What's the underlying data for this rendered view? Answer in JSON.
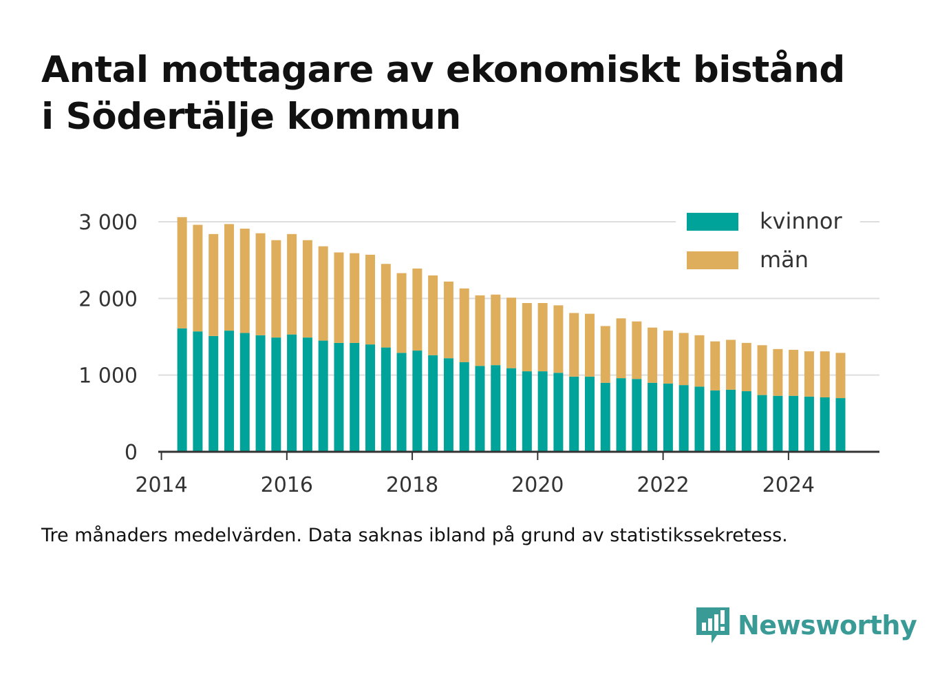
{
  "title_line1": "Antal mottagare av ekonomiskt bistånd",
  "title_line2": "i Södertälje kommun",
  "footnote": "Tre månaders medelvärden. Data saknas ibland på grund av statistikssekretess.",
  "brand": "Newsworthy",
  "brand_icon": "bar-chart-speech-bubble-icon",
  "colors": {
    "kvinnor": "#00a39a",
    "man": "#deae5c",
    "grid": "#dddddd",
    "axis": "#333333",
    "brand": "#3a9a96"
  },
  "chart_data": {
    "type": "bar",
    "stacked": true,
    "title": "Antal mottagare av ekonomiskt bistånd i Södertälje kommun",
    "xlim": [
      2013.95,
      2025.45
    ],
    "ylim": [
      0,
      3000
    ],
    "xticks": [
      2014,
      2016,
      2018,
      2020,
      2022,
      2024
    ],
    "xtick_labels": [
      "2014",
      "2016",
      "2018",
      "2020",
      "2022",
      "2024"
    ],
    "yticks": [
      0,
      1000,
      2000,
      3000
    ],
    "ytick_labels": [
      "0",
      "1 000",
      "2 000",
      "3 000"
    ],
    "grid": true,
    "legend": {
      "position": "top-right",
      "entries": [
        "kvinnor",
        "män"
      ]
    },
    "x": [
      2014.33,
      2014.58,
      2014.83,
      2015.08,
      2015.33,
      2015.58,
      2015.83,
      2016.08,
      2016.33,
      2016.58,
      2016.83,
      2017.08,
      2017.33,
      2017.58,
      2017.83,
      2018.08,
      2018.33,
      2018.58,
      2018.83,
      2019.08,
      2019.33,
      2019.58,
      2019.83,
      2020.08,
      2020.33,
      2020.58,
      2020.83,
      2021.08,
      2021.33,
      2021.58,
      2021.83,
      2022.08,
      2022.33,
      2022.58,
      2022.83,
      2023.08,
      2023.33,
      2023.58,
      2023.83,
      2024.08,
      2024.33,
      2024.58,
      2024.83
    ],
    "series": [
      {
        "name": "kvinnor",
        "values": [
          1610,
          1570,
          1510,
          1580,
          1550,
          1520,
          1490,
          1530,
          1490,
          1450,
          1420,
          1420,
          1400,
          1360,
          1290,
          1320,
          1260,
          1220,
          1170,
          1120,
          1130,
          1090,
          1050,
          1050,
          1030,
          980,
          980,
          900,
          960,
          950,
          900,
          890,
          870,
          850,
          800,
          810,
          790,
          740,
          730,
          730,
          720,
          710,
          700
        ]
      },
      {
        "name": "män",
        "values": [
          1450,
          1390,
          1330,
          1390,
          1360,
          1330,
          1270,
          1310,
          1270,
          1230,
          1180,
          1170,
          1170,
          1090,
          1040,
          1070,
          1040,
          1000,
          960,
          920,
          920,
          920,
          890,
          890,
          880,
          830,
          820,
          740,
          780,
          750,
          720,
          690,
          680,
          670,
          640,
          650,
          630,
          650,
          610,
          600,
          590,
          600,
          590
        ]
      }
    ]
  }
}
